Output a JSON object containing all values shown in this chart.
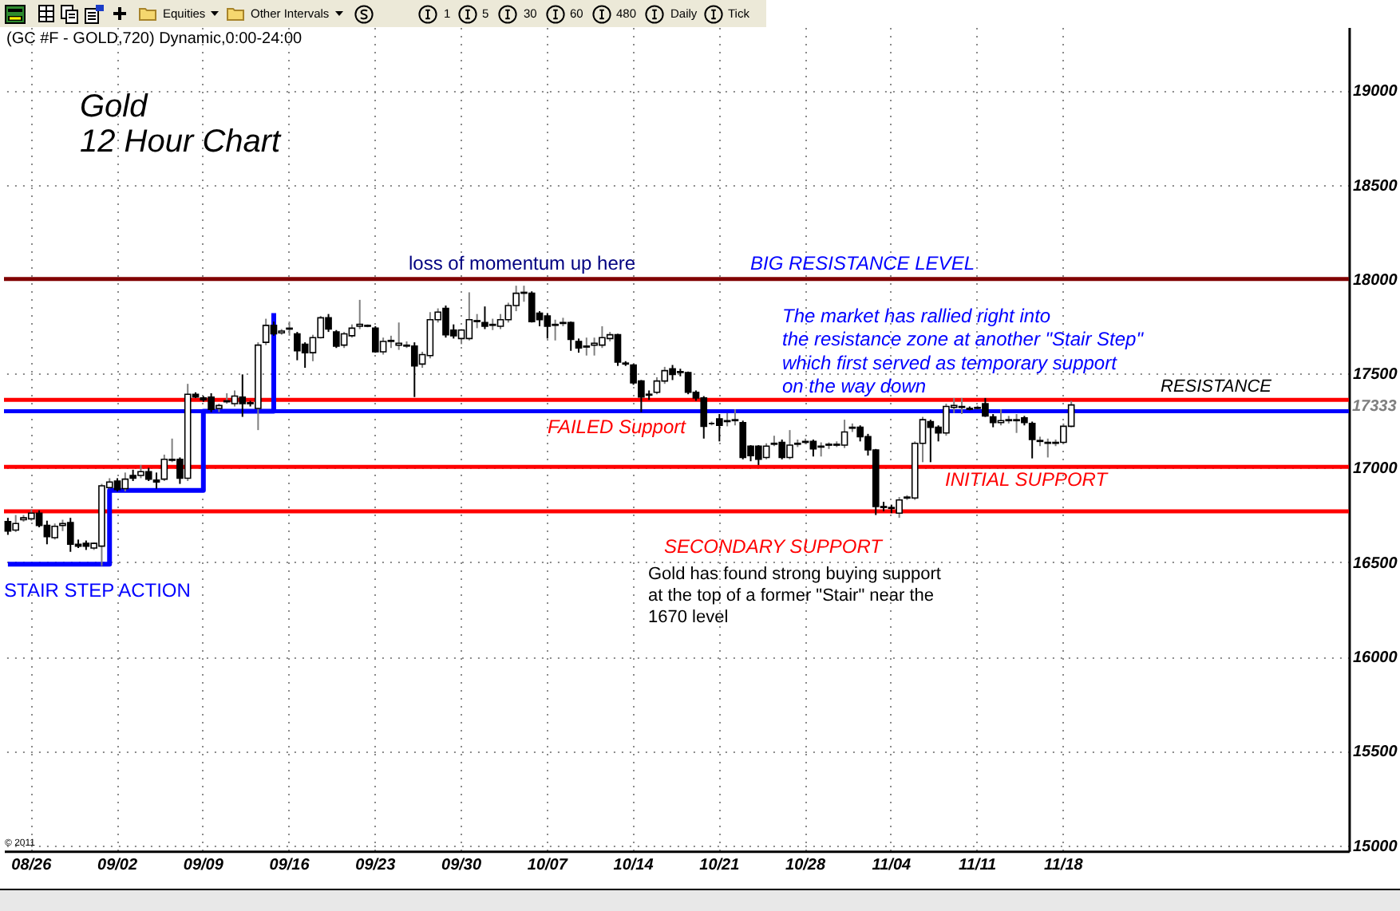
{
  "chart_data": {
    "type": "candlestick",
    "title": "Gold",
    "subtitle": "12 Hour Chart",
    "categories": [
      null,
      null,
      null,
      "08/26",
      null,
      null,
      null,
      null,
      null,
      null,
      null,
      null,
      null,
      null,
      "09/02",
      null,
      null,
      null,
      null,
      null,
      null,
      null,
      null,
      null,
      null,
      "09/09",
      null,
      null,
      null,
      null,
      null,
      null,
      null,
      null,
      null,
      null,
      "09/16",
      null,
      null,
      null,
      null,
      null,
      null,
      null,
      null,
      null,
      null,
      "09/23",
      null,
      null,
      null,
      null,
      null,
      null,
      null,
      null,
      null,
      null,
      "09/30",
      null,
      null,
      null,
      null,
      null,
      null,
      null,
      null,
      null,
      null,
      "10/07",
      null,
      null,
      null,
      null,
      null,
      null,
      null,
      null,
      null,
      null,
      "10/14",
      null,
      null,
      null,
      null,
      null,
      null,
      null,
      null,
      null,
      null,
      "10/21",
      null,
      null,
      null,
      null,
      null,
      null,
      null,
      null,
      null,
      null,
      "10/28",
      null,
      null,
      null,
      null,
      null,
      null,
      null,
      null,
      null,
      null,
      "11/04",
      null,
      null,
      null,
      null,
      null,
      null,
      null,
      null,
      null,
      null,
      "11/11",
      null,
      null,
      null,
      null,
      null,
      null,
      null,
      null,
      null,
      null,
      "11/18",
      null,
      null,
      null,
      null,
      null,
      null,
      null,
      null,
      null,
      null,
      null,
      null,
      null,
      null,
      null,
      null,
      null,
      null,
      null,
      null,
      null,
      null,
      null,
      null,
      null,
      null,
      null,
      null,
      null,
      null,
      null,
      null,
      null,
      null,
      null,
      null
    ],
    "ohlc": [
      [
        16715,
        16735,
        16645,
        16665
      ],
      [
        16670,
        16750,
        16660,
        16705
      ],
      [
        16725,
        16750,
        16715,
        16735
      ],
      [
        16730,
        16780,
        16720,
        16760
      ],
      [
        16760,
        16775,
        16685,
        16695
      ],
      [
        16695,
        16720,
        16595,
        16635
      ],
      [
        16630,
        16705,
        16620,
        16690
      ],
      [
        16695,
        16725,
        16665,
        16705
      ],
      [
        16710,
        16735,
        16555,
        16595
      ],
      [
        16595,
        16620,
        16575,
        16585
      ],
      [
        16600,
        16615,
        16565,
        16585
      ],
      [
        16575,
        16605,
        16565,
        16600
      ],
      [
        16585,
        16915,
        16480,
        16905
      ],
      [
        16895,
        16945,
        16890,
        16925
      ],
      [
        16930,
        16945,
        16875,
        16885
      ],
      [
        16890,
        16975,
        16875,
        16940
      ],
      [
        16960,
        16990,
        16930,
        16945
      ],
      [
        16960,
        17015,
        16945,
        16980
      ],
      [
        16980,
        17000,
        16930,
        16940
      ],
      [
        16935,
        16975,
        16890,
        16925
      ],
      [
        16940,
        17070,
        16930,
        17045
      ],
      [
        17040,
        17155,
        17030,
        17045
      ],
      [
        17045,
        17055,
        16915,
        16945
      ],
      [
        16945,
        17445,
        16930,
        17390
      ],
      [
        17390,
        17400,
        17370,
        17375
      ],
      [
        17370,
        17380,
        17350,
        17360
      ],
      [
        17375,
        17395,
        17295,
        17310
      ],
      [
        17315,
        17340,
        17295,
        17330
      ],
      [
        17350,
        17395,
        17340,
        17355
      ],
      [
        17340,
        17410,
        17325,
        17380
      ],
      [
        17375,
        17495,
        17270,
        17340
      ],
      [
        17345,
        17355,
        17325,
        17340
      ],
      [
        17315,
        17665,
        17200,
        17650
      ],
      [
        17665,
        17790,
        17650,
        17755
      ],
      [
        17755,
        17775,
        17700,
        17710
      ],
      [
        17715,
        17735,
        17705,
        17725
      ],
      [
        17735,
        17775,
        17700,
        17740
      ],
      [
        17710,
        17720,
        17570,
        17620
      ],
      [
        17655,
        17665,
        17530,
        17610
      ],
      [
        17610,
        17705,
        17565,
        17690
      ],
      [
        17690,
        17805,
        17685,
        17795
      ],
      [
        17795,
        17815,
        17720,
        17735
      ],
      [
        17720,
        17730,
        17635,
        17645
      ],
      [
        17650,
        17720,
        17635,
        17710
      ],
      [
        17700,
        17760,
        17690,
        17740
      ],
      [
        17750,
        17890,
        17735,
        17760
      ],
      [
        17750,
        17760,
        17745,
        17755
      ],
      [
        17740,
        17750,
        17610,
        17615
      ],
      [
        17615,
        17690,
        17600,
        17670
      ],
      [
        17670,
        17700,
        17635,
        17675
      ],
      [
        17650,
        17770,
        17625,
        17660
      ],
      [
        17645,
        17670,
        17635,
        17650
      ],
      [
        17645,
        17665,
        17375,
        17540
      ],
      [
        17550,
        17615,
        17530,
        17600
      ],
      [
        17595,
        17825,
        17580,
        17785
      ],
      [
        17785,
        17845,
        17770,
        17825
      ],
      [
        17845,
        17860,
        17690,
        17705
      ],
      [
        17730,
        17760,
        17685,
        17700
      ],
      [
        17685,
        17735,
        17655,
        17730
      ],
      [
        17685,
        17930,
        17675,
        17785
      ],
      [
        17775,
        17815,
        17740,
        17780
      ],
      [
        17770,
        17855,
        17735,
        17750
      ],
      [
        17755,
        17790,
        17730,
        17760
      ],
      [
        17750,
        17815,
        17735,
        17785
      ],
      [
        17785,
        17875,
        17770,
        17860
      ],
      [
        17860,
        17965,
        17830,
        17925
      ],
      [
        17925,
        17965,
        17880,
        17930
      ],
      [
        17925,
        17935,
        17770,
        17775
      ],
      [
        17820,
        17830,
        17750,
        17785
      ],
      [
        17805,
        17820,
        17685,
        17750
      ],
      [
        17755,
        17785,
        17675,
        17760
      ],
      [
        17765,
        17795,
        17750,
        17770
      ],
      [
        17770,
        17775,
        17620,
        17680
      ],
      [
        17670,
        17685,
        17610,
        17635
      ],
      [
        17640,
        17690,
        17595,
        17645
      ],
      [
        17650,
        17690,
        17595,
        17660
      ],
      [
        17650,
        17750,
        17635,
        17690
      ],
      [
        17685,
        17720,
        17670,
        17705
      ],
      [
        17705,
        17710,
        17540,
        17560
      ],
      [
        17555,
        17565,
        17540,
        17550
      ],
      [
        17545,
        17550,
        17440,
        17450
      ],
      [
        17460,
        17465,
        17295,
        17375
      ],
      [
        17390,
        17410,
        17360,
        17385
      ],
      [
        17400,
        17480,
        17390,
        17460
      ],
      [
        17460,
        17535,
        17445,
        17515
      ],
      [
        17525,
        17545,
        17465,
        17495
      ],
      [
        17510,
        17525,
        17485,
        17505
      ],
      [
        17505,
        17510,
        17390,
        17400
      ],
      [
        17400,
        17410,
        17355,
        17370
      ],
      [
        17370,
        17380,
        17155,
        17220
      ],
      [
        17235,
        17245,
        17225,
        17235
      ],
      [
        17260,
        17285,
        17140,
        17225
      ],
      [
        17245,
        17290,
        17220,
        17250
      ],
      [
        17250,
        17310,
        17225,
        17255
      ],
      [
        17240,
        17250,
        17045,
        17055
      ],
      [
        17115,
        17120,
        17035,
        17065
      ],
      [
        17115,
        17120,
        17015,
        17045
      ],
      [
        17055,
        17130,
        17045,
        17115
      ],
      [
        17125,
        17170,
        17115,
        17130
      ],
      [
        17135,
        17150,
        17045,
        17055
      ],
      [
        17055,
        17200,
        17045,
        17120
      ],
      [
        17125,
        17150,
        17110,
        17130
      ],
      [
        17135,
        17155,
        17125,
        17140
      ],
      [
        17140,
        17150,
        17060,
        17100
      ],
      [
        17110,
        17135,
        17060,
        17115
      ],
      [
        17120,
        17135,
        17100,
        17125
      ],
      [
        17120,
        17140,
        17110,
        17125
      ],
      [
        17120,
        17255,
        17105,
        17190
      ],
      [
        17210,
        17235,
        17190,
        17215
      ],
      [
        17215,
        17225,
        17140,
        17165
      ],
      [
        17165,
        17180,
        17065,
        17095
      ],
      [
        17095,
        17100,
        16750,
        16795
      ],
      [
        16795,
        16820,
        16770,
        16790
      ],
      [
        16790,
        16805,
        16760,
        16785
      ],
      [
        16760,
        16845,
        16735,
        16830
      ],
      [
        16840,
        16855,
        16830,
        16845
      ],
      [
        16840,
        17140,
        16830,
        17130
      ],
      [
        17130,
        17270,
        17030,
        17255
      ],
      [
        17245,
        17255,
        17030,
        17215
      ],
      [
        17215,
        17225,
        17140,
        17185
      ],
      [
        17185,
        17340,
        17170,
        17325
      ],
      [
        17320,
        17370,
        17290,
        17330
      ],
      [
        17320,
        17370,
        17285,
        17325
      ],
      [
        17315,
        17325,
        17305,
        17310
      ],
      [
        17315,
        17330,
        17310,
        17320
      ],
      [
        17340,
        17370,
        17270,
        17275
      ],
      [
        17270,
        17285,
        17215,
        17240
      ],
      [
        17240,
        17310,
        17225,
        17250
      ],
      [
        17250,
        17275,
        17235,
        17255
      ],
      [
        17250,
        17285,
        17185,
        17255
      ],
      [
        17265,
        17275,
        17225,
        17240
      ],
      [
        17235,
        17245,
        17050,
        17150
      ],
      [
        17140,
        17165,
        17115,
        17145
      ],
      [
        17130,
        17155,
        17055,
        17135
      ],
      [
        17130,
        17150,
        17115,
        17135
      ],
      [
        17135,
        17235,
        17125,
        17220
      ],
      [
        17220,
        17355,
        17215,
        17333
      ],
      null,
      null,
      null,
      null,
      null,
      null,
      null,
      null,
      null,
      null,
      null,
      null,
      null,
      null,
      null,
      null,
      null,
      null,
      null,
      null,
      null,
      null,
      null,
      null,
      null,
      null,
      null,
      null,
      null,
      null,
      null,
      null,
      null,
      null,
      null
    ],
    "series": [
      {
        "type": "step",
        "color": "#0000ff",
        "values": [
          16490,
          16490,
          16490,
          16490,
          16490,
          16490,
          16490,
          16490,
          16490,
          16490,
          16490,
          16490,
          16490,
          16880,
          16880,
          16880,
          16880,
          16880,
          16880,
          16880,
          16880,
          16880,
          16880,
          16880,
          16880,
          17300,
          17300,
          17300,
          17300,
          17300,
          17300,
          17300,
          17300,
          17300,
          17820,
          null,
          null,
          null,
          null,
          null,
          null,
          null,
          null,
          null,
          null,
          null,
          null,
          null,
          null,
          null,
          null,
          null,
          null,
          null,
          null,
          null,
          null,
          null,
          null,
          null,
          null,
          null,
          null,
          null,
          null,
          null,
          null,
          null,
          null,
          null,
          null,
          null,
          null,
          null,
          null,
          null,
          null,
          null,
          null,
          null,
          null,
          null,
          null,
          null,
          null,
          null,
          null,
          null,
          null,
          null,
          null,
          null,
          null,
          null,
          null,
          null,
          null,
          null,
          null,
          null,
          null,
          null,
          null,
          null,
          null,
          null,
          null,
          null,
          null,
          null,
          null,
          null,
          null,
          null,
          null,
          null,
          null,
          null,
          null,
          null,
          null,
          null,
          null,
          null,
          null,
          null,
          null,
          null,
          null,
          null,
          null,
          null,
          null,
          null,
          null,
          null,
          null,
          null,
          null,
          null,
          null,
          null,
          null,
          null,
          null,
          null,
          null,
          null,
          null,
          null,
          null,
          null,
          null,
          null,
          null,
          null,
          null,
          null,
          null,
          null,
          null,
          null,
          null,
          null,
          null,
          null,
          null,
          null,
          null,
          null,
          null,
          null
        ]
      }
    ],
    "ylim": [
      14970,
      19335
    ],
    "yticks": [
      15000,
      15500,
      16000,
      16500,
      17000,
      17500,
      18000,
      18500,
      19000
    ],
    "grid": true,
    "ref_lines": [
      {
        "axis": "y",
        "value": 18000,
        "label": "BIG RESISTANCE LEVEL",
        "color": "#800000"
      },
      {
        "axis": "y",
        "value": 17360,
        "label": "RESISTANCE",
        "color": "#ff0000"
      },
      {
        "axis": "y",
        "value": 17300,
        "label": "FAILED Support",
        "color": "#0000ff"
      },
      {
        "axis": "y",
        "value": 17005,
        "label": "INITIAL SUPPORT",
        "color": "#ff0000"
      },
      {
        "axis": "y",
        "value": 16770,
        "label": "SECONDARY SUPPORT",
        "color": "#ff0000"
      }
    ],
    "annotations": [
      "Equities",
      "Other Intervals",
      "1",
      "5",
      "30",
      "60",
      "480",
      "Daily",
      "Tick",
      "(GC #F - GOLD,720) Dynamic,0:00-24:00",
      "loss of momentum up here",
      "The market has rallied right into\nthe resistance zone at another \"Stair Step\"\nwhich first served as temporary support\non the way down",
      "17333",
      "Gold has found strong buying support\nat the top of a former \"Stair\" near the\n1670 level",
      "STAIR STEP ACTION",
      "© 2011"
    ]
  }
}
